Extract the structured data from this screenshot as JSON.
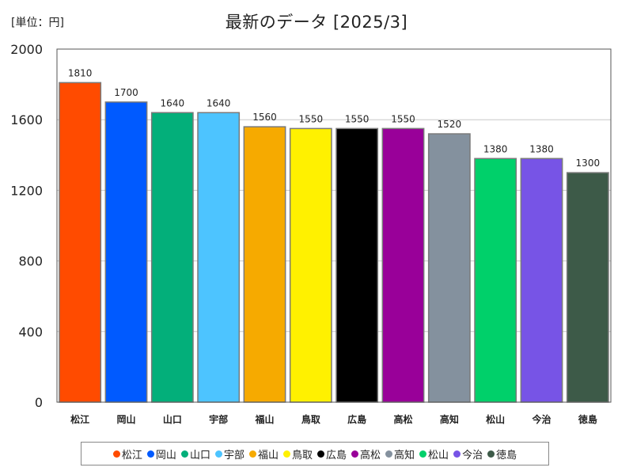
{
  "header": {
    "unit_label": "[単位：円]",
    "title": "最新のデータ [2025/3]"
  },
  "chart_data": {
    "type": "bar",
    "title": "最新のデータ [2025/3]",
    "unit": "[単位：円]",
    "categories": [
      "松江",
      "岡山",
      "山口",
      "宇部",
      "福山",
      "鳥取",
      "広島",
      "高松",
      "高知",
      "松山",
      "今治",
      "徳島"
    ],
    "values": [
      1810,
      1700,
      1640,
      1640,
      1560,
      1550,
      1550,
      1550,
      1520,
      1380,
      1380,
      1300
    ],
    "colors": [
      "#ff4b00",
      "#005aff",
      "#03af7a",
      "#4dc4ff",
      "#f6aa00",
      "#fff100",
      "#000000",
      "#990099",
      "#84919e",
      "#00d06a",
      "#7754e6",
      "#3d5a48"
    ],
    "ylim": [
      0,
      2000
    ],
    "yticks": [
      0,
      400,
      800,
      1200,
      1600,
      2000
    ],
    "grid": true,
    "legend": "bottom"
  }
}
